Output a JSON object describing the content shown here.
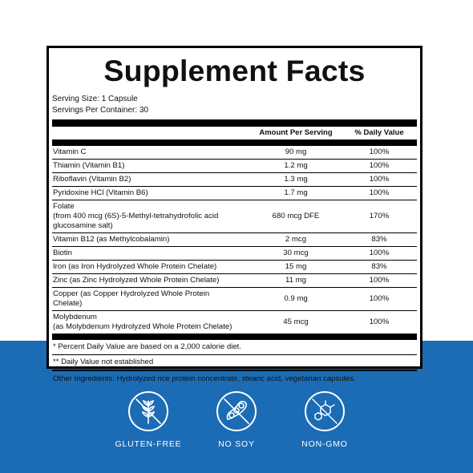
{
  "title": "Supplement Facts",
  "serving_size": "Serving Size: 1 Capsule",
  "servings_per_container": "Servings Per Container: 30",
  "columns": {
    "amount": "Amount Per Serving",
    "daily_value": "% Daily Value"
  },
  "nutrients": [
    {
      "name": "Vitamin C",
      "amount": "90 mg",
      "dv": "100%"
    },
    {
      "name": "Thiamin (Vitamin B1)",
      "amount": "1.2 mg",
      "dv": "100%"
    },
    {
      "name": "Riboflavin (Vitamin B2)",
      "amount": "1.3 mg",
      "dv": "100%"
    },
    {
      "name": "Pyridoxine HCl (Vitamin B6)",
      "amount": "1.7 mg",
      "dv": "100%"
    },
    {
      "name": "Folate\n(from 400 mcg (6S)-5-Methyl-tetrahydrofolic acid\nglucosamine salt)",
      "amount": "680 mcg DFE",
      "dv": "170%"
    },
    {
      "name": "Vitamin B12 (as Methylcobalamin)",
      "amount": "2 mcg",
      "dv": "83%"
    },
    {
      "name": "Biotin",
      "amount": "30 mcg",
      "dv": "100%"
    },
    {
      "name": "Iron (as Iron Hydrolyzed Whole Protein Chelate)",
      "amount": "15 mg",
      "dv": "83%"
    },
    {
      "name": "Zinc (as Zinc Hydrolyzed Whole Protein Chelate)",
      "amount": "11 mg",
      "dv": "100%"
    },
    {
      "name": "Copper (as Copper Hydrolyzed Whole Protein Chelate)",
      "amount": "0.9 mg",
      "dv": "100%"
    },
    {
      "name": "Molybdenum\n(as Molybdenum Hydrolyzed Whole Protein Chelate)",
      "amount": "45 mcg",
      "dv": "100%"
    }
  ],
  "footnotes": [
    "* Percent Daily Value are based on a 2,000 calorie diet.",
    "** Daily Value not established"
  ],
  "other_ingredients": "Other Ingredients: Hydrolyzed rice protein concentrate, stearic acid, vegetarian capsules.",
  "badges": [
    {
      "label": "GLUTEN-FREE",
      "icon": "gluten-free-icon"
    },
    {
      "label": "NO SOY",
      "icon": "no-soy-icon"
    },
    {
      "label": "NON-GMO",
      "icon": "non-gmo-icon"
    }
  ],
  "colors": {
    "band": "#1b6cb5",
    "badge_line": "#ffffff",
    "rule": "#000000"
  }
}
